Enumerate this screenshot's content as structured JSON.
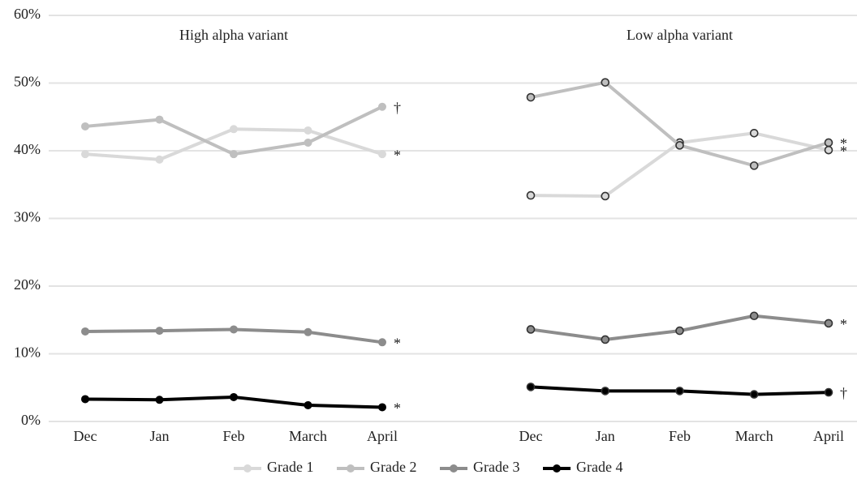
{
  "chart_data": {
    "type": "line",
    "ylim": [
      0,
      60
    ],
    "yticks": [
      {
        "value": 0,
        "label": "0%"
      },
      {
        "value": 10,
        "label": "10%"
      },
      {
        "value": 20,
        "label": "20%"
      },
      {
        "value": 30,
        "label": "30%"
      },
      {
        "value": 40,
        "label": "40%"
      },
      {
        "value": 50,
        "label": "50%"
      },
      {
        "value": 60,
        "label": "60%"
      }
    ],
    "grid": true,
    "legend": "bottom",
    "categories": [
      "Dec",
      "Jan",
      "Feb",
      "March",
      "April"
    ],
    "series": [
      {
        "name": "Grade 1",
        "color": "#d9d9d9"
      },
      {
        "name": "Grade 2",
        "color": "#bfbfbf"
      },
      {
        "name": "Grade 3",
        "color": "#8c8c8c"
      },
      {
        "name": "Grade 4",
        "color": "#000000"
      }
    ],
    "panels": [
      {
        "title": "High alpha variant",
        "marker_edgecolor": null,
        "values": [
          [
            39.5,
            38.7,
            43.2,
            43.0,
            39.5
          ],
          [
            43.6,
            44.6,
            39.5,
            41.2,
            46.5
          ],
          [
            13.3,
            13.4,
            13.6,
            13.2,
            11.7
          ],
          [
            3.3,
            3.2,
            3.6,
            2.4,
            2.1
          ]
        ],
        "end_labels": [
          "*",
          "†",
          "*",
          "*"
        ]
      },
      {
        "title": "Low alpha variant",
        "marker_edgecolor": "#333333",
        "values": [
          [
            33.4,
            33.3,
            41.2,
            42.6,
            40.1
          ],
          [
            47.9,
            50.1,
            40.8,
            37.8,
            41.2
          ],
          [
            13.6,
            12.1,
            13.4,
            15.6,
            14.5
          ],
          [
            5.1,
            4.5,
            4.5,
            4.0,
            4.3
          ]
        ],
        "end_labels": [
          "*",
          "*",
          "*",
          "†"
        ]
      }
    ]
  }
}
